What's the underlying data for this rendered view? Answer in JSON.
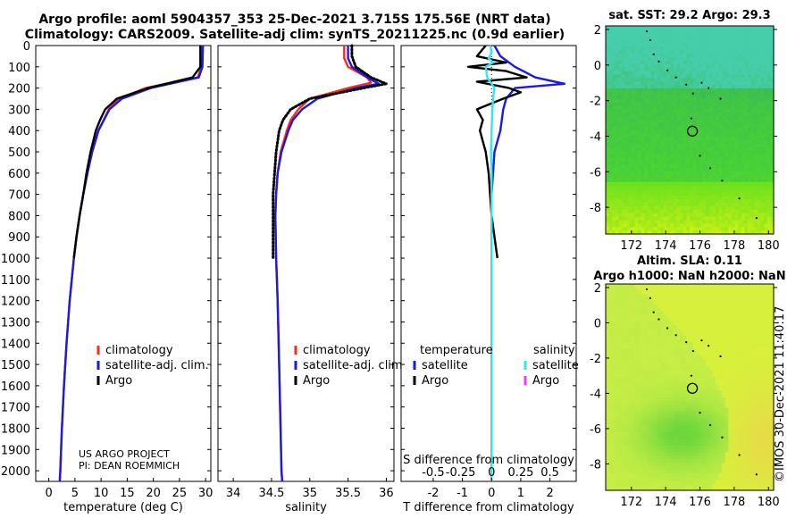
{
  "header": {
    "line1": "Argo profile: aoml 5904357_353 25-Dec-2021 3.715S 175.56E (NRT data)",
    "line2": "Climatology: CARS2009. Satellite-adj clim: synTS_20211225.nc (0.9d earlier)"
  },
  "copyright": "©IMOS 30-Dec-2021 11:40:17",
  "colors": {
    "climatology": "#ff2a1a",
    "satellite": "#1a1ae6",
    "argo": "#000000",
    "sat_salinity": "#33e6f0",
    "argo_salinity": "#ff33ff"
  },
  "chart_data": [
    {
      "type": "line",
      "id": "temperature",
      "xlabel": "temperature (deg C)",
      "ylabel": "",
      "xlim": [
        -2.5,
        31
      ],
      "ylim": [
        2050,
        0
      ],
      "xticks": [
        0,
        5,
        10,
        15,
        20,
        25,
        30
      ],
      "yticks": [
        0,
        100,
        200,
        300,
        400,
        500,
        600,
        700,
        800,
        900,
        1000,
        1100,
        1200,
        1300,
        1400,
        1500,
        1600,
        1700,
        1800,
        1900,
        2000
      ],
      "legend": [
        "climatology",
        "satellite-adj. clim.",
        "Argo"
      ],
      "legend_position": "lower-right",
      "annotation": [
        "US ARGO PROJECT",
        "PI: DEAN ROEMMICH"
      ],
      "series": [
        {
          "name": "climatology",
          "style": "line",
          "color": "#ff2a1a",
          "depth": [
            0,
            100,
            150,
            200,
            250,
            300,
            400,
            500,
            600,
            700,
            800,
            900,
            1000,
            1200,
            1400,
            1600,
            1800,
            2000,
            2050
          ],
          "values": [
            29.3,
            29.2,
            28.5,
            18.5,
            13.5,
            11.5,
            9.5,
            8.3,
            7.4,
            6.6,
            5.9,
            5.3,
            4.8,
            4.0,
            3.4,
            2.9,
            2.5,
            2.2,
            2.1
          ]
        },
        {
          "name": "satellite-adj. clim.",
          "style": "line",
          "color": "#1a1ae6",
          "depth": [
            0,
            100,
            150,
            200,
            250,
            300,
            400,
            500,
            600,
            700,
            800,
            900,
            1000,
            1200,
            1400,
            1600,
            1800,
            2000,
            2050
          ],
          "values": [
            29.5,
            29.4,
            28.7,
            19.5,
            14,
            11.6,
            9.5,
            8.3,
            7.4,
            6.6,
            5.9,
            5.3,
            4.8,
            4.0,
            3.4,
            2.9,
            2.5,
            2.2,
            2.1
          ]
        },
        {
          "name": "Argo",
          "style": "line",
          "color": "#000000",
          "depth": [
            0,
            100,
            150,
            200,
            250,
            300,
            350,
            400,
            500,
            600,
            700,
            800,
            900,
            1000
          ],
          "values": [
            29.0,
            29.0,
            27.5,
            19,
            13,
            10.8,
            9.8,
            9.0,
            8.0,
            7.2,
            6.6,
            5.9,
            5.3,
            4.8
          ]
        }
      ]
    },
    {
      "type": "line",
      "id": "salinity",
      "xlabel": "salinity",
      "ylabel": "",
      "xlim": [
        33.8,
        36.1
      ],
      "ylim": [
        2050,
        0
      ],
      "xticks": [
        34,
        34.5,
        35,
        35.5,
        36
      ],
      "legend": [
        "climatology",
        "satellite-adj. clim.",
        "Argo"
      ],
      "legend_position": "lower-right",
      "series": [
        {
          "name": "climatology",
          "style": "line",
          "color": "#ff2a1a",
          "depth": [
            0,
            60,
            100,
            150,
            175,
            200,
            250,
            300,
            350,
            400,
            500,
            600,
            700,
            800,
            1000,
            1200,
            1500,
            2000,
            2050
          ],
          "values": [
            35.45,
            35.45,
            35.5,
            35.75,
            35.8,
            35.5,
            35.0,
            34.85,
            34.75,
            34.7,
            34.62,
            34.58,
            34.56,
            34.55,
            34.56,
            34.58,
            34.6,
            34.63,
            34.64
          ]
        },
        {
          "name": "satellite-adj. clim.",
          "style": "line",
          "color": "#1a1ae6",
          "depth": [
            0,
            60,
            100,
            150,
            180,
            200,
            250,
            300,
            350,
            400,
            500,
            600,
            700,
            800,
            1000,
            1200,
            1500,
            2000,
            2050
          ],
          "values": [
            35.5,
            35.5,
            35.55,
            35.75,
            35.9,
            35.6,
            35.1,
            34.9,
            34.78,
            34.72,
            34.63,
            34.58,
            34.56,
            34.55,
            34.56,
            34.58,
            34.6,
            34.63,
            34.64
          ]
        },
        {
          "name": "Argo",
          "style": "dotted",
          "color": "#000000",
          "depth": [
            0,
            50,
            100,
            150,
            180,
            200,
            250,
            300,
            350,
            400,
            450,
            500,
            600,
            700,
            800,
            900,
            1000
          ],
          "values": [
            35.55,
            35.55,
            35.6,
            35.8,
            36.0,
            35.7,
            35.0,
            34.75,
            34.65,
            34.6,
            34.58,
            34.56,
            34.54,
            34.52,
            34.52,
            34.52,
            34.52
          ]
        }
      ]
    },
    {
      "type": "line",
      "id": "difference",
      "xlabel": "T difference from climatology",
      "xlabel2": "S difference from climatology",
      "xlim": [
        -3.1,
        2.9
      ],
      "ylim": [
        2050,
        0
      ],
      "xticks": [
        -2,
        -1,
        0,
        1,
        2
      ],
      "xticks2": [
        -0.5,
        -0.25,
        0,
        0.25,
        0.5
      ],
      "legend_temperature_title": "temperature",
      "legend_salinity_title": "salinity",
      "legend_temperature": [
        "satellite",
        "Argo"
      ],
      "legend_salinity": [
        "satellite",
        "Argo"
      ],
      "series": [
        {
          "name": "temperature satellite",
          "style": "line",
          "color": "#1a1ae6",
          "depth": [
            0,
            50,
            100,
            150,
            180,
            200,
            250,
            300,
            400,
            500,
            600,
            700,
            800,
            1000,
            1500,
            2000,
            2050
          ],
          "values": [
            0.1,
            0.3,
            0.8,
            1.5,
            2.5,
            0.8,
            0.5,
            0.4,
            0.3,
            0.1,
            0.05,
            0,
            0,
            0,
            0,
            0,
            0
          ]
        },
        {
          "name": "temperature Argo",
          "style": "line",
          "color": "#000000",
          "depth": [
            0,
            50,
            80,
            100,
            120,
            150,
            170,
            200,
            220,
            250,
            300,
            350,
            400,
            500,
            600,
            700,
            800,
            900,
            1000
          ],
          "values": [
            -0.2,
            -0.5,
            0.5,
            -0.8,
            0.5,
            1.2,
            -0.5,
            0.6,
            1.0,
            0.4,
            -0.5,
            -0.3,
            -0.4,
            -0.2,
            -0.1,
            -0.05,
            0,
            0.1,
            0.2
          ]
        },
        {
          "name": "salinity satellite",
          "style": "line",
          "color": "#33e6f0",
          "depth": [
            0,
            30,
            60,
            80,
            100,
            150,
            200,
            250,
            300,
            400,
            500,
            600,
            700,
            1000,
            1500,
            2000,
            2050
          ],
          "values": [
            -0.05,
            0,
            -0.1,
            0.05,
            -0.2,
            -0.15,
            0.1,
            0.05,
            0.03,
            0.0,
            -0.02,
            0,
            0,
            0,
            0,
            0,
            0
          ]
        }
      ]
    },
    {
      "type": "heatmap",
      "id": "sst-map",
      "title": "sat. SST: 29.2 Argo: 29.3",
      "xlim": [
        170.5,
        180.3
      ],
      "ylim": [
        -9.5,
        2.2
      ],
      "xticks": [
        172,
        174,
        176,
        178,
        180
      ],
      "yticks": [
        2,
        0,
        -2,
        -4,
        -6,
        -8
      ],
      "profile_location": [
        175.56,
        -3.715
      ],
      "track": [
        [
          172.9,
          1.9
        ],
        [
          173.1,
          1.4
        ],
        [
          173.3,
          0.6
        ],
        [
          173.6,
          0.2
        ],
        [
          174.1,
          -0.3
        ],
        [
          174.6,
          -0.7
        ],
        [
          175.2,
          -1.1
        ],
        [
          175.6,
          -1.6
        ],
        [
          176.1,
          -1.0
        ],
        [
          176.5,
          -1.3
        ],
        [
          177.2,
          -1.9
        ],
        [
          175.5,
          -3.0
        ],
        [
          176.0,
          -5.1
        ],
        [
          176.6,
          -5.8
        ],
        [
          177.3,
          -6.5
        ],
        [
          178.3,
          -7.5
        ],
        [
          179.3,
          -8.6
        ]
      ]
    },
    {
      "type": "heatmap",
      "id": "sla-map",
      "title": "Altim. SLA: 0.11",
      "subtitle": "Argo h1000: NaN h2000: NaN",
      "xlim": [
        170.5,
        180.3
      ],
      "ylim": [
        -9.5,
        2.2
      ],
      "xticks": [
        172,
        174,
        176,
        178,
        180
      ],
      "yticks": [
        2,
        0,
        -2,
        -4,
        -6,
        -8
      ],
      "profile_location": [
        175.56,
        -3.715
      ],
      "track": [
        [
          172.9,
          1.9
        ],
        [
          173.1,
          1.4
        ],
        [
          173.3,
          0.6
        ],
        [
          173.6,
          0.2
        ],
        [
          174.1,
          -0.3
        ],
        [
          174.6,
          -0.7
        ],
        [
          175.2,
          -1.1
        ],
        [
          175.6,
          -1.6
        ],
        [
          176.1,
          -1.0
        ],
        [
          176.5,
          -1.3
        ],
        [
          177.2,
          -1.9
        ],
        [
          175.5,
          -3.0
        ],
        [
          176.0,
          -5.1
        ],
        [
          176.6,
          -5.8
        ],
        [
          177.3,
          -6.5
        ],
        [
          178.3,
          -7.5
        ],
        [
          179.3,
          -8.6
        ]
      ]
    }
  ]
}
